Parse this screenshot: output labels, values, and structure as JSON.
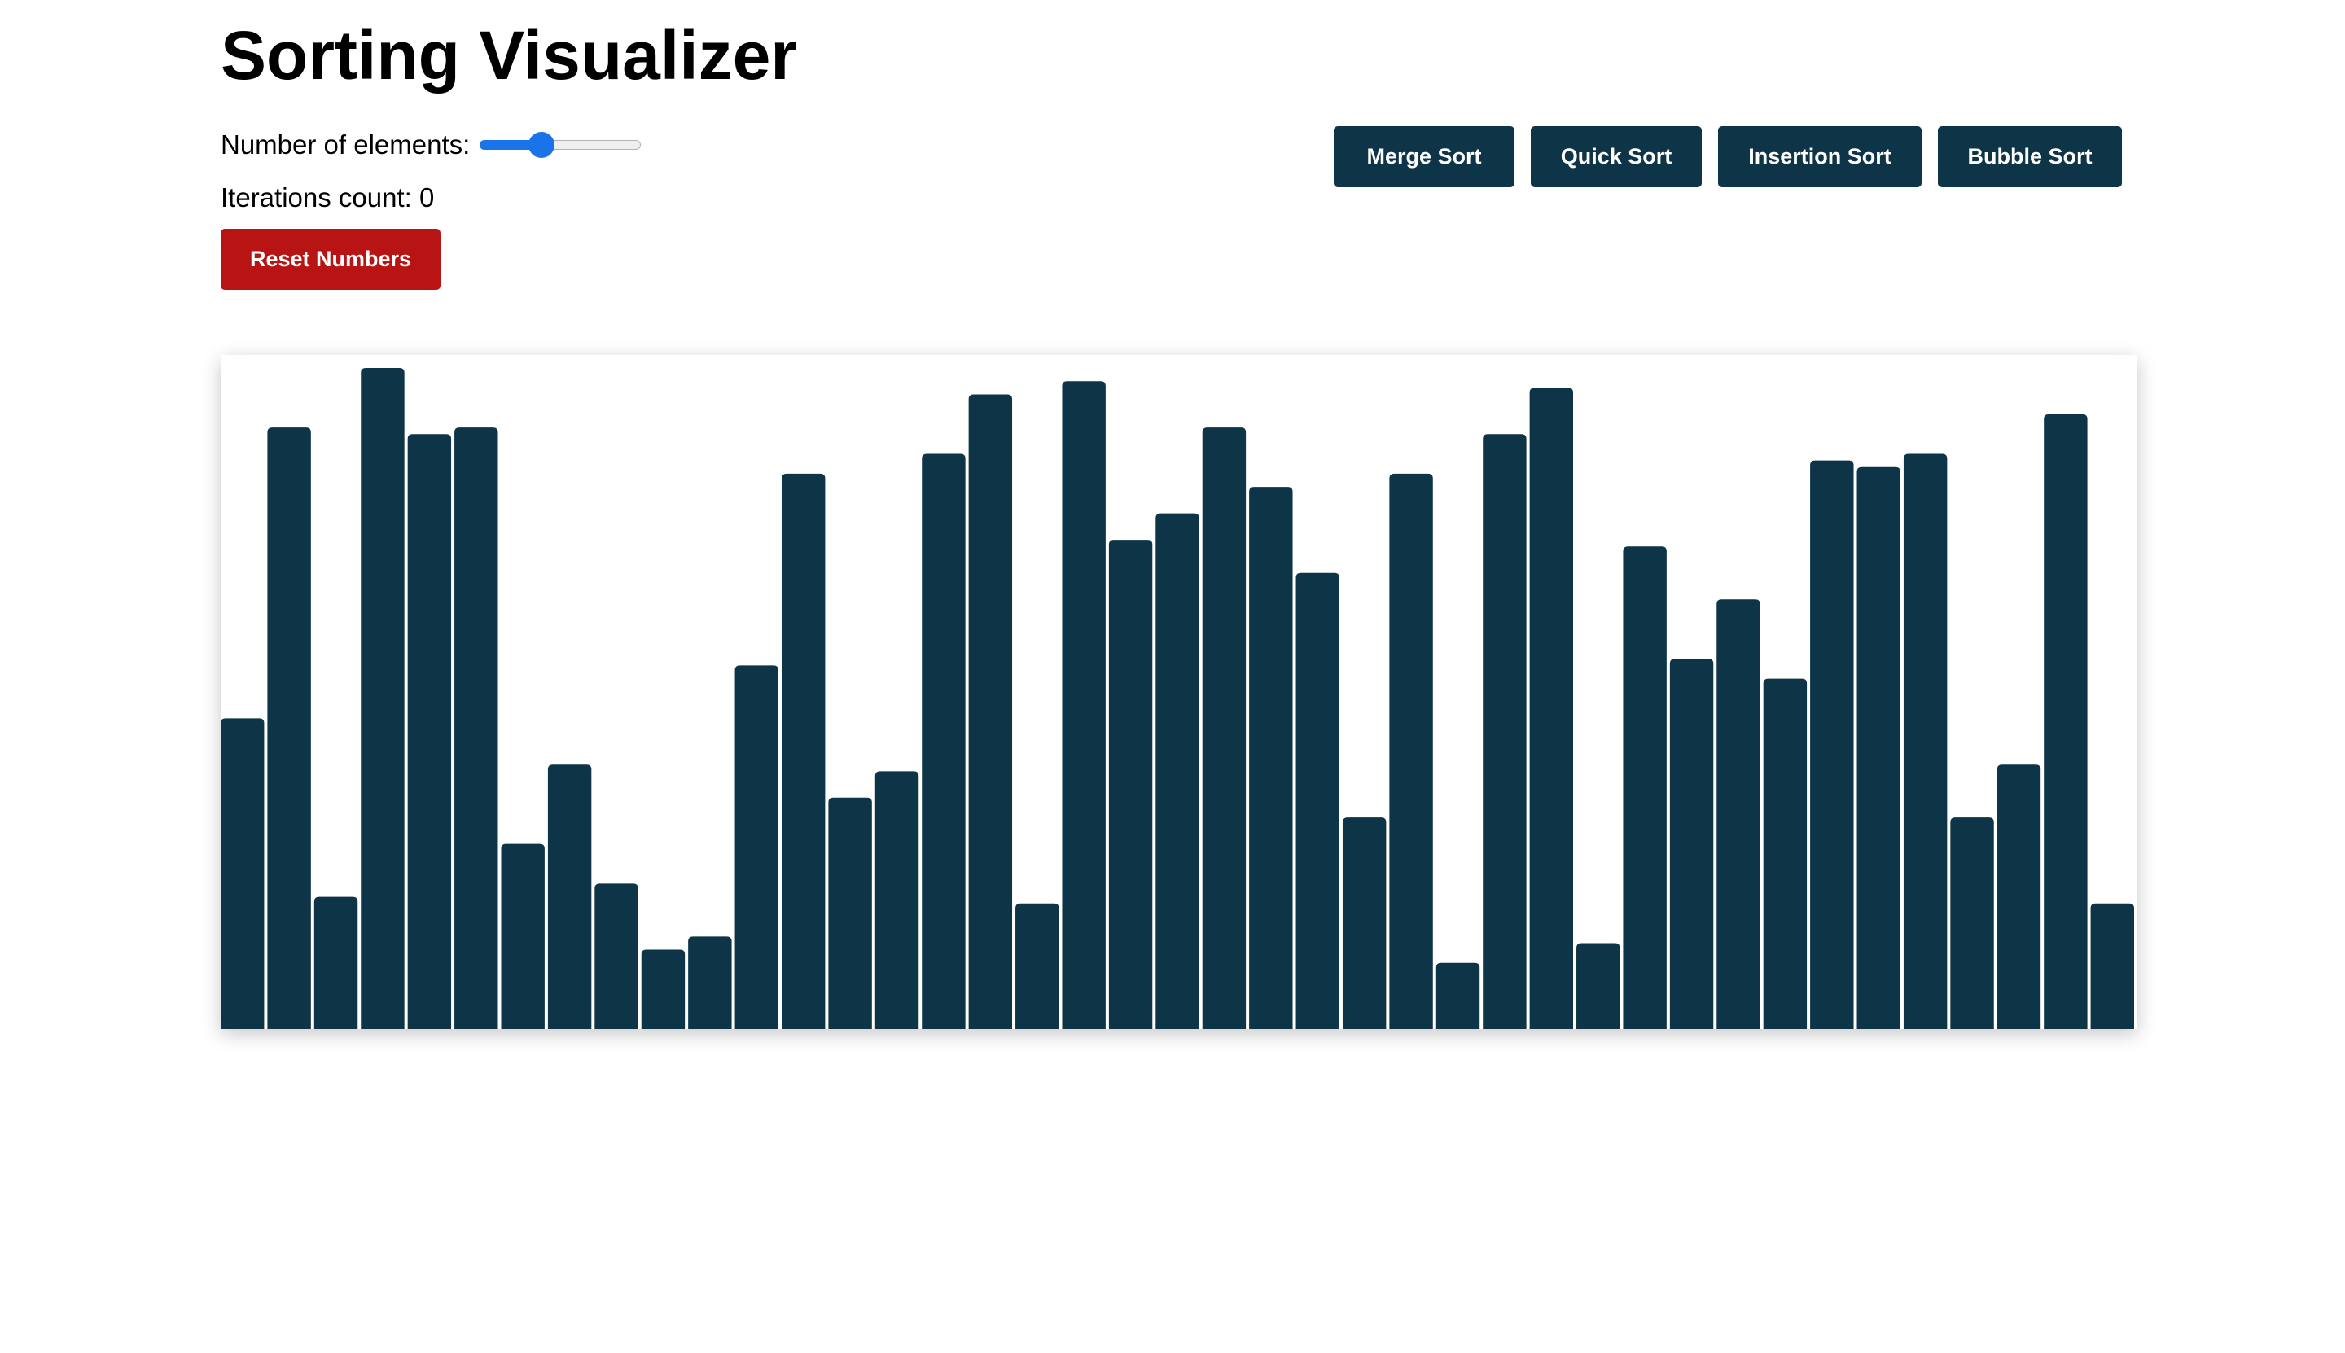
{
  "header": {
    "title": "Sorting Visualizer"
  },
  "controls": {
    "elements_label": "Number of elements:",
    "slider_value_fraction": 0.36,
    "iterations_label": "Iterations count: 0",
    "reset_label": "Reset Numbers"
  },
  "sort_buttons": [
    {
      "label": "Merge Sort"
    },
    {
      "label": "Quick Sort"
    },
    {
      "label": "Insertion Sort"
    },
    {
      "label": "Bubble Sort"
    }
  ],
  "colors": {
    "bar": "#0e3447",
    "sort_button": "#0e3447",
    "reset_button": "#b81414",
    "slider_accent": "#1a73e8"
  },
  "chart_data": {
    "type": "bar",
    "max_value": 100,
    "values": [
      47,
      91,
      20,
      100,
      90,
      91,
      28,
      40,
      22,
      12,
      14,
      55,
      84,
      35,
      39,
      87,
      96,
      19,
      98,
      74,
      78,
      91,
      82,
      69,
      32,
      84,
      10,
      90,
      97,
      13,
      73,
      56,
      65,
      53,
      86,
      85,
      87,
      32,
      40,
      93,
      19
    ]
  }
}
